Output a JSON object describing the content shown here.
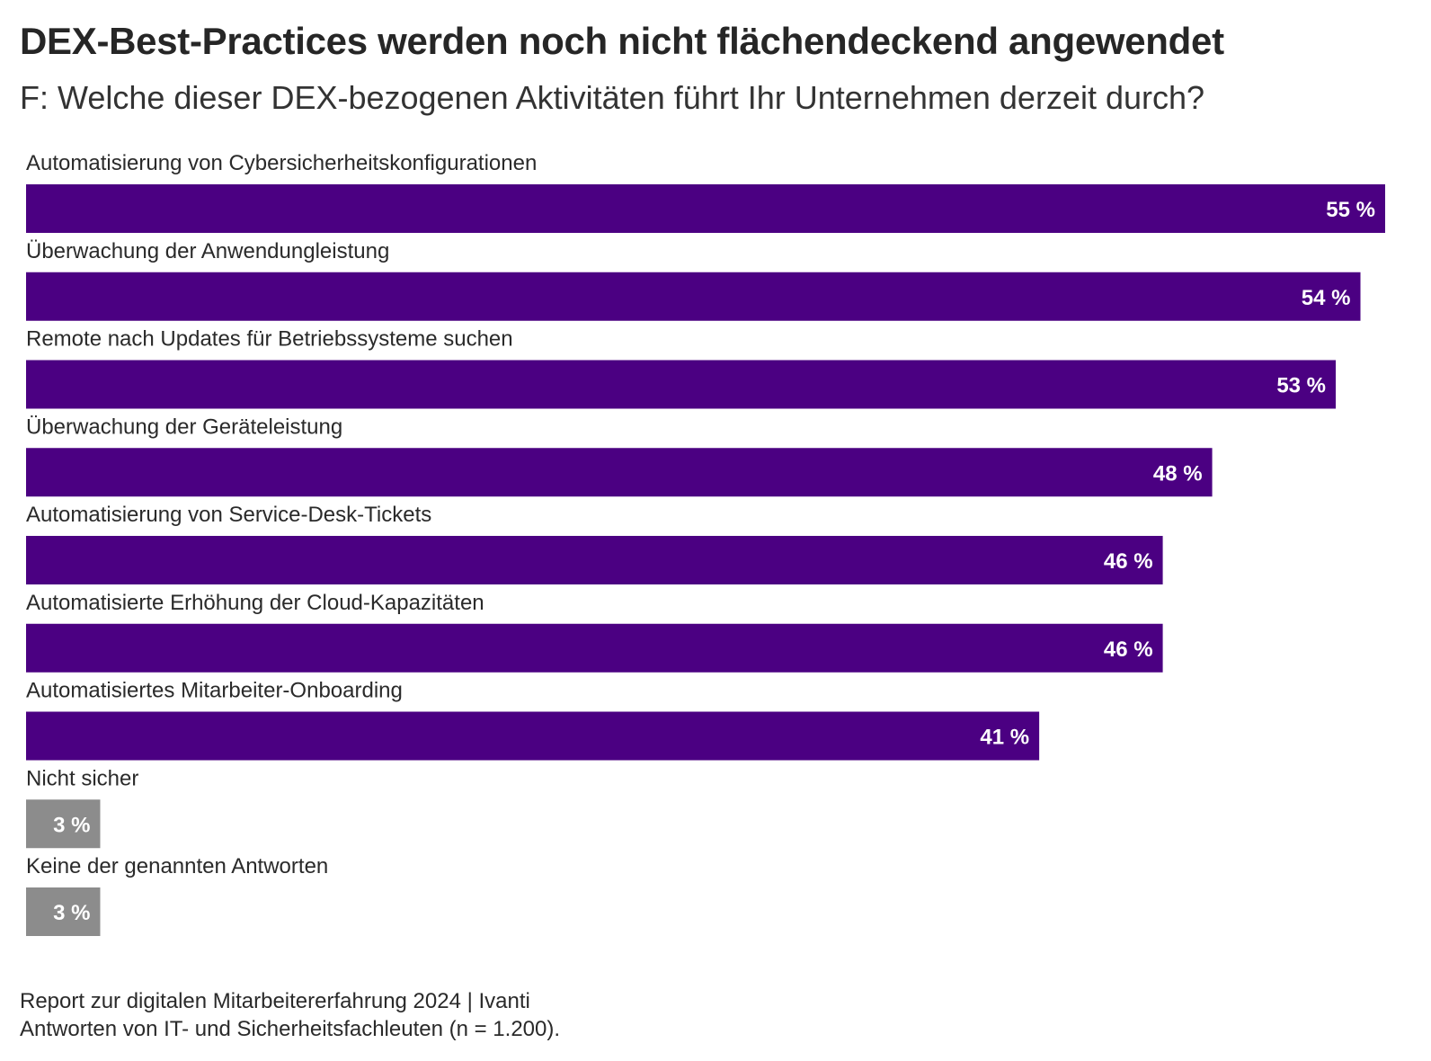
{
  "title": "DEX-Best-Practices werden noch nicht flächendeckend angewendet",
  "subtitle": "F: Welche dieser DEX-bezogenen Aktivitäten führt Ihr Unternehmen derzeit durch?",
  "footer": {
    "source": "Report zur digitalen Mitarbeitererfahrung 2024 | Ivanti",
    "note": "Antworten von IT- und Sicherheitsfachleuten (n = 1.200)."
  },
  "colors": {
    "primary_bar": "#4b0082",
    "neutral_bar": "#8c8c8c",
    "value_text": "#ffffff"
  },
  "chart_data": {
    "type": "bar",
    "orientation": "horizontal",
    "value_suffix": " %",
    "categories": [
      "Automatisierung von Cybersicherheitskonfigurationen",
      "Überwachung der Anwendungleistung",
      "Remote nach Updates für Betriebssysteme suchen",
      "Überwachung der Geräteleistung",
      "Automatisierung von Service-Desk-Tickets",
      "Automatisierte Erhöhung der Cloud-Kapazitäten",
      "Automatisiertes Mitarbeiter-Onboarding",
      "Nicht sicher",
      "Keine der genannten Antworten"
    ],
    "values": [
      55,
      54,
      53,
      48,
      46,
      46,
      41,
      3,
      3
    ],
    "bar_colors": [
      "primary",
      "primary",
      "primary",
      "primary",
      "primary",
      "primary",
      "primary",
      "neutral",
      "neutral"
    ],
    "xlim": [
      0,
      55
    ],
    "grid": false,
    "legend": "none"
  }
}
